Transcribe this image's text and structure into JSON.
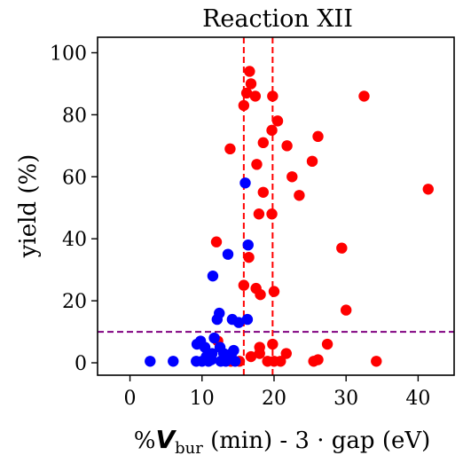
{
  "chart_data": {
    "type": "scatter",
    "title": "Reaction XII",
    "xlabel": {
      "prefix": "%",
      "symbol": "V",
      "subscript": "bur",
      "suffix": " (min) - 3 · gap (eV)"
    },
    "ylabel": "yield (%)",
    "xlim": [
      -4.5,
      45
    ],
    "ylim": [
      -4,
      105
    ],
    "xticks": [
      0,
      10,
      20,
      30,
      40
    ],
    "yticks": [
      0,
      20,
      40,
      60,
      80,
      100
    ],
    "grid": false,
    "legend": "none",
    "reference_lines": {
      "vertical": [
        15.8,
        19.8
      ],
      "vertical_color": "#ff0000",
      "horizontal": [
        10
      ],
      "horizontal_color": "#800080"
    },
    "series": [
      {
        "color": "#ff0000",
        "points": [
          [
            16.6,
            94
          ],
          [
            16.8,
            90
          ],
          [
            16.2,
            87
          ],
          [
            17.4,
            86
          ],
          [
            15.8,
            83
          ],
          [
            19.8,
            86
          ],
          [
            32.5,
            86
          ],
          [
            20.5,
            78
          ],
          [
            19.7,
            75
          ],
          [
            18.5,
            71
          ],
          [
            21.8,
            70
          ],
          [
            26.1,
            73
          ],
          [
            13.9,
            69
          ],
          [
            25.3,
            65
          ],
          [
            17.6,
            64
          ],
          [
            22.5,
            60
          ],
          [
            23.5,
            54
          ],
          [
            18.5,
            55
          ],
          [
            41.4,
            56
          ],
          [
            17.9,
            48
          ],
          [
            19.7,
            48
          ],
          [
            12.0,
            39
          ],
          [
            29.4,
            37
          ],
          [
            16.5,
            34
          ],
          [
            15.8,
            25
          ],
          [
            17.5,
            24
          ],
          [
            18.1,
            22
          ],
          [
            20.0,
            23
          ],
          [
            30.0,
            17
          ],
          [
            12.2,
            7
          ],
          [
            18.0,
            5
          ],
          [
            19.8,
            6
          ],
          [
            27.4,
            6
          ],
          [
            14.0,
            0.5
          ],
          [
            15.2,
            0.5
          ],
          [
            16.8,
            2
          ],
          [
            18.0,
            3
          ],
          [
            19.1,
            0.5
          ],
          [
            20.0,
            0.5
          ],
          [
            20.9,
            0.5
          ],
          [
            21.7,
            3
          ],
          [
            25.5,
            0.5
          ],
          [
            26.1,
            1
          ],
          [
            34.2,
            0.5
          ]
        ]
      },
      {
        "color": "#0000ff",
        "points": [
          [
            16.0,
            58
          ],
          [
            16.4,
            38
          ],
          [
            13.6,
            35
          ],
          [
            11.5,
            28
          ],
          [
            12.1,
            14
          ],
          [
            12.4,
            16
          ],
          [
            14.2,
            14
          ],
          [
            15.1,
            13
          ],
          [
            16.3,
            14
          ],
          [
            9.3,
            6
          ],
          [
            9.8,
            7
          ],
          [
            10.4,
            5
          ],
          [
            11.7,
            8
          ],
          [
            12.5,
            5
          ],
          [
            13.0,
            3
          ],
          [
            13.5,
            2
          ],
          [
            14.1,
            3
          ],
          [
            14.4,
            4
          ],
          [
            10.6,
            2
          ],
          [
            11.3,
            1
          ],
          [
            2.8,
            0.5
          ],
          [
            6.0,
            0.5
          ],
          [
            9.2,
            0.5
          ],
          [
            10.0,
            0.5
          ],
          [
            10.9,
            0.5
          ],
          [
            12.6,
            0.5
          ],
          [
            13.3,
            0.5
          ],
          [
            14.6,
            0.5
          ],
          [
            11.4,
            3
          ],
          [
            12.9,
            1
          ]
        ]
      }
    ]
  }
}
